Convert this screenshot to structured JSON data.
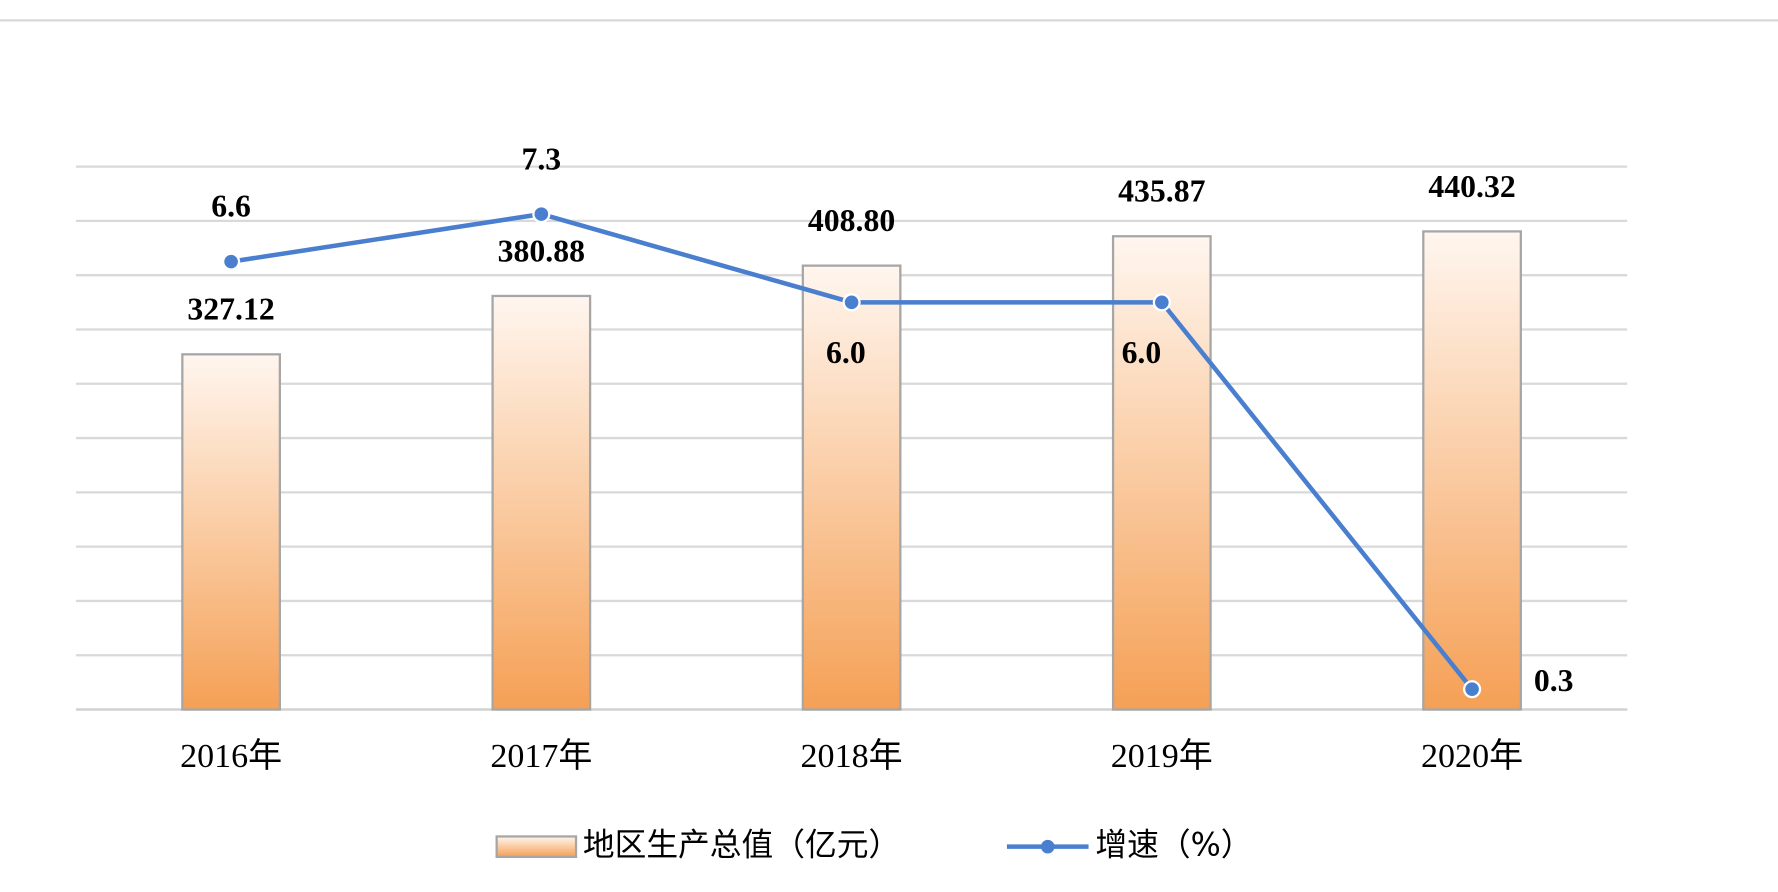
{
  "chart_data": {
    "type": "bar-line",
    "categories": [
      "2016年",
      "2017年",
      "2018年",
      "2019年",
      "2020年"
    ],
    "series": [
      {
        "name": "地区生产总值（亿元）",
        "type": "bar",
        "color": "#f5a055",
        "values": [
          327.12,
          380.88,
          408.8,
          435.87,
          440.32
        ],
        "value_labels": [
          "327.12",
          "380.88",
          "408.80",
          "435.87",
          "440.32"
        ]
      },
      {
        "name": "增速（%）",
        "type": "line",
        "axis": "y2",
        "color": "#4a7fcf",
        "values": [
          6.6,
          7.3,
          6.0,
          6.0,
          0.3
        ],
        "value_labels": [
          "6.6",
          "7.3",
          "6.0",
          "6.0",
          "0.3"
        ]
      }
    ],
    "ylim": [
      0,
      500
    ],
    "yticks": [
      0,
      50,
      100,
      150,
      200,
      250,
      300,
      350,
      400,
      450,
      500
    ],
    "y2lim": [
      0,
      8
    ],
    "grid": true,
    "legend": "bottom"
  }
}
